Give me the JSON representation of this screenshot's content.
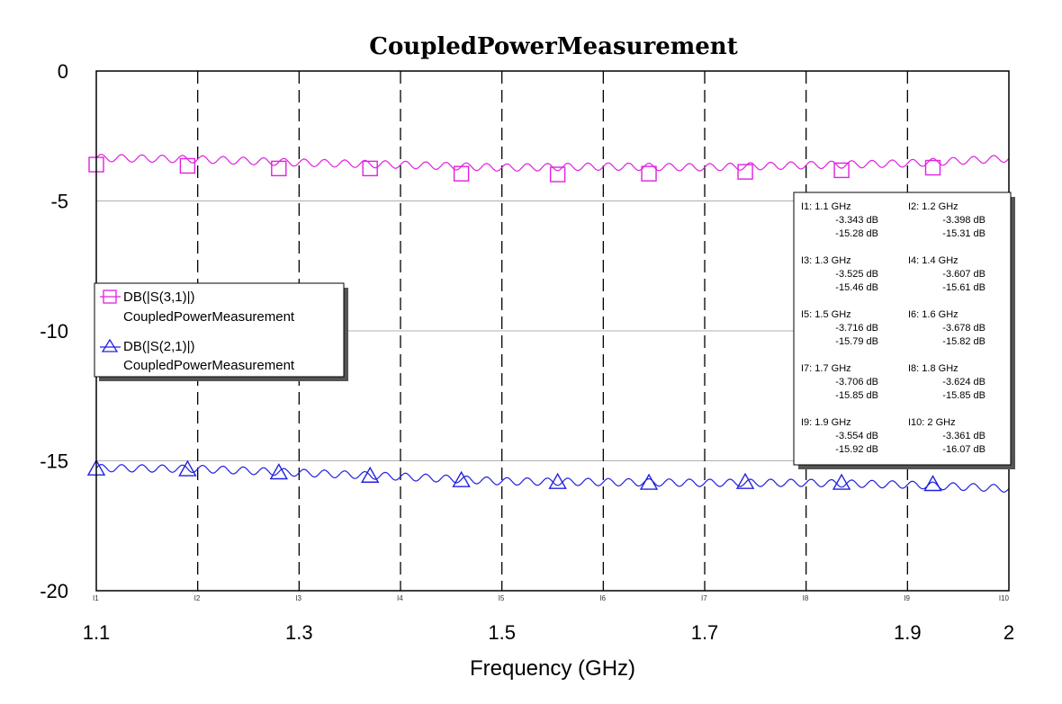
{
  "chart_data": {
    "type": "line",
    "title": "CoupledPowerMeasurement",
    "xlabel": "Frequency (GHz)",
    "ylabel": "",
    "xlim": [
      1.1,
      2.0
    ],
    "ylim": [
      -20,
      0
    ],
    "x_ticks": [
      "1.1",
      "1.3",
      "1.5",
      "1.7",
      "1.9",
      "2"
    ],
    "x_tick_values": [
      1.1,
      1.3,
      1.5,
      1.7,
      1.9,
      2.0
    ],
    "y_ticks": [
      "0",
      "-5",
      "-10",
      "-15",
      "-20"
    ],
    "y_tick_values": [
      0,
      -5,
      -10,
      -15,
      -20
    ],
    "grid": true,
    "legend_position": "left",
    "marker_label_prefix": "I",
    "markers": [
      {
        "label": "I1",
        "x": 1.1,
        "header": "I1: 1.1 GHz",
        "s31": "-3.343 dB",
        "s21": "-15.28 dB"
      },
      {
        "label": "I2",
        "x": 1.2,
        "header": "I2: 1.2 GHz",
        "s31": "-3.398 dB",
        "s21": "-15.31 dB"
      },
      {
        "label": "I3",
        "x": 1.3,
        "header": "I3: 1.3 GHz",
        "s31": "-3.525 dB",
        "s21": "-15.46 dB"
      },
      {
        "label": "I4",
        "x": 1.4,
        "header": "I4: 1.4 GHz",
        "s31": "-3.607 dB",
        "s21": "-15.61 dB"
      },
      {
        "label": "I5",
        "x": 1.5,
        "header": "I5: 1.5 GHz",
        "s31": "-3.716 dB",
        "s21": "-15.79 dB"
      },
      {
        "label": "I6",
        "x": 1.6,
        "header": "I6: 1.6 GHz",
        "s31": "-3.678 dB",
        "s21": "-15.82 dB"
      },
      {
        "label": "I7",
        "x": 1.7,
        "header": "I7: 1.7 GHz",
        "s31": "-3.706 dB",
        "s21": "-15.85 dB"
      },
      {
        "label": "I8",
        "x": 1.8,
        "header": "I8: 1.8 GHz",
        "s31": "-3.624 dB",
        "s21": "-15.85 dB"
      },
      {
        "label": "I9",
        "x": 1.9,
        "header": "I9: 1.9 GHz",
        "s31": "-3.554 dB",
        "s21": "-15.92 dB"
      },
      {
        "label": "I10",
        "x": 2.0,
        "header": "I10: 2 GHz",
        "s31": "-3.361 dB",
        "s21": "-16.07 dB"
      }
    ],
    "series": [
      {
        "name": "DB(|S(3,1)|)",
        "subname": "CoupledPowerMeasurement",
        "color": "#e020e0",
        "marker": "square",
        "x": [
          1.1,
          1.2,
          1.3,
          1.4,
          1.5,
          1.6,
          1.7,
          1.8,
          1.9,
          2.0
        ],
        "values": [
          -3.343,
          -3.398,
          -3.525,
          -3.607,
          -3.716,
          -3.678,
          -3.706,
          -3.624,
          -3.554,
          -3.361
        ],
        "marker_x": [
          1.1,
          1.19,
          1.28,
          1.37,
          1.46,
          1.555,
          1.645,
          1.74,
          1.835,
          1.925
        ],
        "marker_y": [
          -3.6,
          -3.65,
          -3.75,
          -3.75,
          -3.95,
          -3.98,
          -3.95,
          -3.88,
          -3.82,
          -3.72
        ]
      },
      {
        "name": "DB(|S(2,1)|)",
        "subname": "CoupledPowerMeasurement",
        "color": "#2020e0",
        "marker": "triangle",
        "x": [
          1.1,
          1.2,
          1.3,
          1.4,
          1.5,
          1.6,
          1.7,
          1.8,
          1.9,
          2.0
        ],
        "values": [
          -15.28,
          -15.31,
          -15.46,
          -15.61,
          -15.79,
          -15.82,
          -15.85,
          -15.85,
          -15.92,
          -16.07
        ],
        "marker_x": [
          1.1,
          1.19,
          1.28,
          1.37,
          1.46,
          1.555,
          1.645,
          1.74,
          1.835,
          1.925
        ],
        "marker_y": [
          -15.3,
          -15.33,
          -15.45,
          -15.58,
          -15.75,
          -15.82,
          -15.85,
          -15.82,
          -15.85,
          -15.9
        ]
      }
    ]
  }
}
